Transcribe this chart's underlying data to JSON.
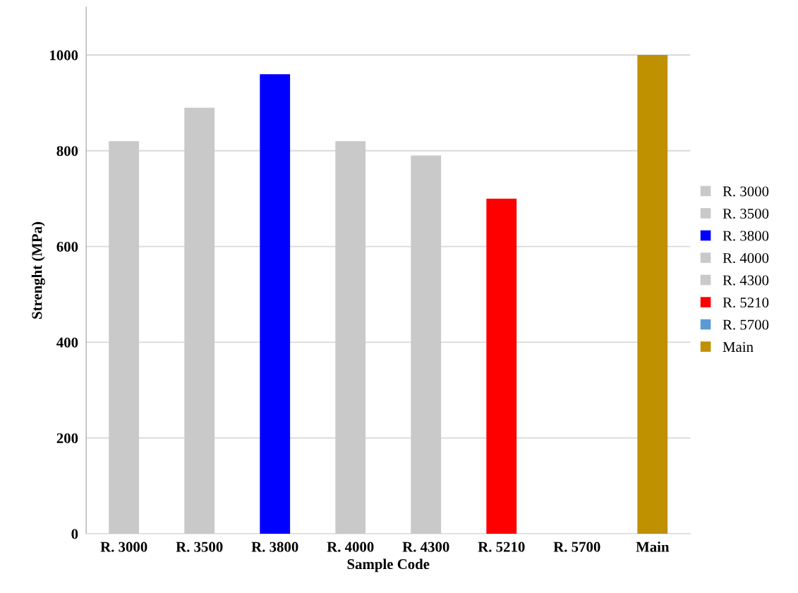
{
  "chart_data": {
    "type": "bar",
    "xlabel": "Sample Code",
    "ylabel": "Strenght (MPa)",
    "categories": [
      "R. 3000",
      "R. 3500",
      "R. 3800",
      "R. 4000",
      "R. 4300",
      "R. 5210",
      "R. 5700",
      "Main"
    ],
    "series": [
      {
        "name": "R. 3000",
        "color": "#c9c9c9",
        "values": [
          820,
          null,
          null,
          null,
          null,
          null,
          null,
          null
        ]
      },
      {
        "name": "R. 3500",
        "color": "#c9c9c9",
        "values": [
          null,
          890,
          null,
          null,
          null,
          null,
          null,
          null
        ]
      },
      {
        "name": "R. 3800",
        "color": "#0000ff",
        "values": [
          null,
          null,
          960,
          null,
          null,
          null,
          null,
          null
        ]
      },
      {
        "name": "R. 4000",
        "color": "#c9c9c9",
        "values": [
          null,
          null,
          null,
          820,
          null,
          null,
          null,
          null
        ]
      },
      {
        "name": "R. 4300",
        "color": "#c9c9c9",
        "values": [
          null,
          null,
          null,
          null,
          790,
          null,
          null,
          null
        ]
      },
      {
        "name": "R. 5210",
        "color": "#ff0000",
        "values": [
          null,
          null,
          null,
          null,
          null,
          700,
          null,
          null
        ]
      },
      {
        "name": "R. 5700",
        "color": "#5b9bd5",
        "values": [
          null,
          null,
          null,
          null,
          null,
          null,
          null,
          null
        ]
      },
      {
        "name": "Main",
        "color": "#bf9000",
        "values": [
          null,
          null,
          null,
          null,
          null,
          null,
          null,
          1000
        ]
      }
    ],
    "ylim": [
      0,
      1100
    ],
    "yticks": [
      0,
      200,
      400,
      600,
      800,
      1000
    ],
    "grid": "y",
    "legend": "right"
  }
}
